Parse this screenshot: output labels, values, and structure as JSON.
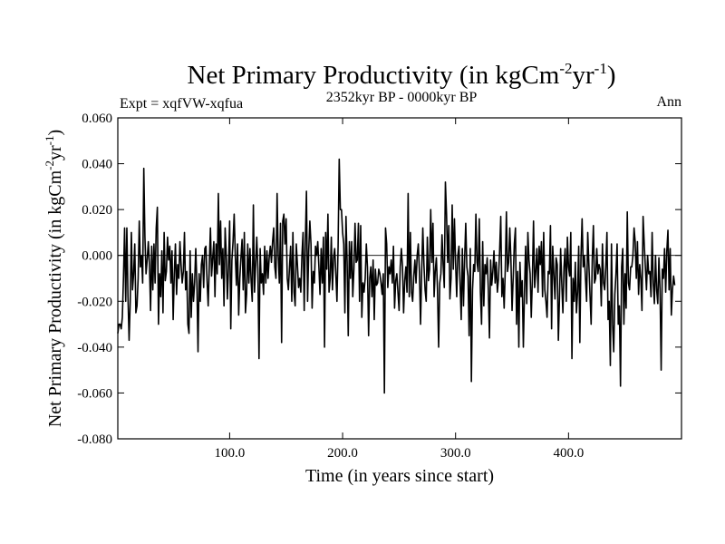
{
  "chart_data": {
    "type": "line",
    "title": {
      "main": "Net Primary Productivity (in kgCm",
      "sup1": "-2",
      "mid": "yr",
      "sup2": "-1",
      "end": ")"
    },
    "subtitle_left": "Expt = xqfVW-xqfua",
    "subtitle_center": "2352kyr BP - 0000kyr BP",
    "subtitle_right": "Ann",
    "xlabel": "Time (in years since start)",
    "ylabel": {
      "main": "Net Primary Productivity (in kgCm",
      "sup1": "-2",
      "mid": "yr",
      "sup2": "-1",
      "end": ")"
    },
    "xlim": [
      1,
      500
    ],
    "ylim": [
      -0.08,
      0.06
    ],
    "xticks": [
      100,
      200,
      300,
      400
    ],
    "xtick_labels": [
      "100.0",
      "200.0",
      "300.0",
      "400.0"
    ],
    "yticks": [
      0.06,
      0.04,
      0.02,
      0.0,
      -0.02,
      -0.04,
      -0.06,
      -0.08
    ],
    "ytick_labels": [
      "0.060",
      "0.040",
      "0.020",
      "0.000",
      "-0.020",
      "-0.040",
      "-0.060",
      "-0.080"
    ],
    "zero_line": 0,
    "line_color": "#000000",
    "series": [
      {
        "name": "Ann",
        "x_start": 1,
        "x_step": 1,
        "values": [
          -0.034,
          -0.03,
          -0.03,
          -0.032,
          -0.027,
          -0.01,
          0.012,
          -0.02,
          0.012,
          -0.018,
          -0.037,
          -0.02,
          0.01,
          -0.015,
          -0.008,
          0.005,
          -0.025,
          -0.022,
          -0.01,
          0.015,
          -0.005,
          0.0,
          -0.012,
          0.038,
          0.008,
          -0.008,
          -0.002,
          0.006,
          -0.004,
          -0.024,
          0.004,
          -0.015,
          0.005,
          -0.012,
          0.012,
          0.021,
          -0.03,
          -0.008,
          -0.018,
          0.002,
          -0.025,
          0.01,
          -0.011,
          -0.007,
          0.008,
          -0.002,
          0.004,
          -0.012,
          0.002,
          -0.028,
          -0.008,
          0.005,
          -0.017,
          -0.004,
          -0.01,
          0.006,
          -0.004,
          -0.012,
          -0.007,
          0.01,
          -0.015,
          -0.007,
          -0.03,
          -0.034,
          0.002,
          -0.027,
          -0.008,
          -0.02,
          -0.012,
          0.003,
          -0.012,
          -0.042,
          -0.008,
          -0.02,
          -0.004,
          0.0,
          -0.014,
          0.003,
          0.004,
          -0.011,
          -0.022,
          -0.004,
          0.012,
          -0.009,
          -0.001,
          0.006,
          -0.018,
          0.005,
          -0.008,
          0.027,
          -0.004,
          0.015,
          -0.01,
          0.003,
          -0.022,
          0.012,
          0.0,
          -0.019,
          -0.005,
          0.015,
          -0.032,
          -0.002,
          0.006,
          0.018,
          0.0,
          -0.013,
          0.005,
          -0.026,
          -0.01,
          -0.001,
          0.007,
          -0.015,
          0.01,
          -0.025,
          -0.017,
          0.005,
          -0.012,
          0.003,
          -0.011,
          -0.02,
          0.022,
          -0.016,
          -0.004,
          0.008,
          -0.006,
          -0.045,
          0.003,
          -0.012,
          -0.008,
          -0.017,
          0.004,
          -0.012,
          0.002,
          -0.01,
          -0.001,
          0.004,
          -0.003,
          0.006,
          0.012,
          -0.005,
          -0.01,
          0.027,
          0.0,
          -0.012,
          0.014,
          -0.038,
          0.015,
          0.018,
          0.005,
          0.016,
          -0.01,
          -0.015,
          -0.005,
          0.004,
          -0.02,
          0.01,
          -0.016,
          -0.022,
          0.005,
          -0.004,
          -0.014,
          -0.01,
          -0.016,
          0.0,
          0.01,
          -0.024,
          0.006,
          0.028,
          -0.02,
          0.002,
          0.015,
          0.005,
          -0.023,
          -0.007,
          -0.012,
          0.004,
          0.0,
          0.006,
          -0.005,
          -0.017,
          0.003,
          -0.012,
          0.008,
          -0.04,
          0.01,
          -0.006,
          0.018,
          -0.016,
          -0.01,
          0.008,
          -0.015,
          -0.001,
          0.003,
          -0.008,
          -0.02,
          0.004,
          0.042,
          0.02,
          0.02,
          0.01,
          0.005,
          -0.025,
          0.017,
          -0.003,
          -0.035,
          0.006,
          -0.01,
          0.006,
          -0.018,
          -0.006,
          0.014,
          -0.003,
          -0.002,
          0.014,
          -0.02,
          0.013,
          -0.027,
          -0.012,
          -0.016,
          -0.01,
          0.005,
          -0.005,
          -0.035,
          -0.01,
          -0.005,
          -0.018,
          -0.002,
          -0.028,
          -0.006,
          -0.013,
          -0.012,
          -0.006,
          -0.008,
          -0.012,
          -0.017,
          -0.008,
          -0.06,
          0.012,
          0.005,
          -0.014,
          -0.005,
          -0.008,
          -0.002,
          -0.012,
          0.004,
          -0.023,
          -0.011,
          -0.008,
          -0.016,
          -0.024,
          -0.005,
          0.003,
          -0.005,
          -0.025,
          -0.011,
          -0.005,
          -0.016,
          0.027,
          -0.018,
          0.01,
          -0.016,
          -0.02,
          -0.009,
          -0.002,
          -0.012,
          0.0,
          0.005,
          -0.007,
          -0.03,
          -0.007,
          0.012,
          -0.004,
          -0.015,
          -0.02,
          0.008,
          -0.011,
          -0.006,
          0.02,
          -0.003,
          0.014,
          -0.018,
          -0.007,
          -0.001,
          -0.015,
          -0.04,
          -0.012,
          -0.008,
          0.009,
          -0.004,
          -0.014,
          0.032,
          0.018,
          -0.003,
          0.013,
          -0.019,
          -0.01,
          0.022,
          -0.006,
          0.016,
          -0.003,
          -0.018,
          0.0,
          0.004,
          -0.012,
          -0.028,
          0.003,
          -0.022,
          -0.002,
          0.014,
          -0.005,
          -0.009,
          -0.035,
          0.003,
          -0.055,
          -0.015,
          -0.004,
          -0.007,
          0.018,
          -0.003,
          -0.007,
          0.016,
          -0.016,
          -0.03,
          0.006,
          -0.022,
          -0.004,
          -0.008,
          -0.001,
          -0.015,
          -0.036,
          -0.002,
          -0.013,
          -0.007,
          0.002,
          -0.012,
          -0.003,
          -0.016,
          -0.01,
          0.002,
          0.017,
          -0.018,
          -0.01,
          -0.023,
          -0.006,
          0.019,
          -0.007,
          -0.003,
          0.012,
          -0.002,
          -0.024,
          -0.01,
          0.005,
          0.012,
          -0.03,
          -0.007,
          -0.04,
          -0.003,
          -0.018,
          -0.011,
          -0.04,
          -0.016,
          0.004,
          -0.021,
          0.01,
          -0.002,
          -0.008,
          -0.027,
          -0.01,
          0.015,
          -0.014,
          -0.007,
          0.003,
          -0.016,
          0.004,
          -0.004,
          0.006,
          -0.018,
          0.01,
          -0.015,
          -0.02,
          -0.027,
          -0.007,
          -0.008,
          0.013,
          -0.032,
          0.004,
          -0.008,
          -0.019,
          -0.001,
          -0.004,
          -0.037,
          -0.018,
          0.003,
          -0.012,
          -0.025,
          -0.005,
          0.003,
          -0.02,
          0.008,
          -0.005,
          -0.009,
          0.01,
          -0.045,
          -0.01,
          -0.02,
          -0.003,
          -0.025,
          -0.016,
          0.004,
          -0.038,
          -0.001,
          0.016,
          -0.005,
          0.0,
          -0.01,
          -0.02,
          0.01,
          -0.004,
          -0.017,
          -0.03,
          -0.002,
          0.013,
          -0.012,
          -0.01,
          0.003,
          -0.008,
          -0.004,
          -0.006,
          -0.022,
          0.005,
          -0.012,
          -0.015,
          -0.005,
          0.01,
          -0.028,
          -0.02,
          -0.048,
          0.005,
          -0.03,
          -0.042,
          -0.017,
          -0.008,
          0.005,
          -0.03,
          -0.022,
          -0.057,
          -0.005,
          0.003,
          -0.03,
          -0.008,
          -0.023,
          0.019,
          -0.012,
          -0.015,
          -0.005,
          -0.005,
          0.0,
          0.012,
          0.006,
          -0.01,
          0.006,
          -0.017,
          -0.004,
          -0.01,
          -0.024,
          0.017,
          0.005,
          -0.005,
          -0.015,
          0.0,
          -0.008,
          -0.007,
          -0.018,
          0.01,
          -0.012,
          -0.021,
          0.0,
          -0.015,
          -0.021,
          -0.001,
          -0.015,
          -0.05,
          -0.006,
          -0.01,
          0.003,
          -0.016,
          0.002,
          0.011,
          -0.015,
          0.003,
          -0.026,
          -0.015,
          -0.009,
          -0.013
        ]
      }
    ]
  }
}
